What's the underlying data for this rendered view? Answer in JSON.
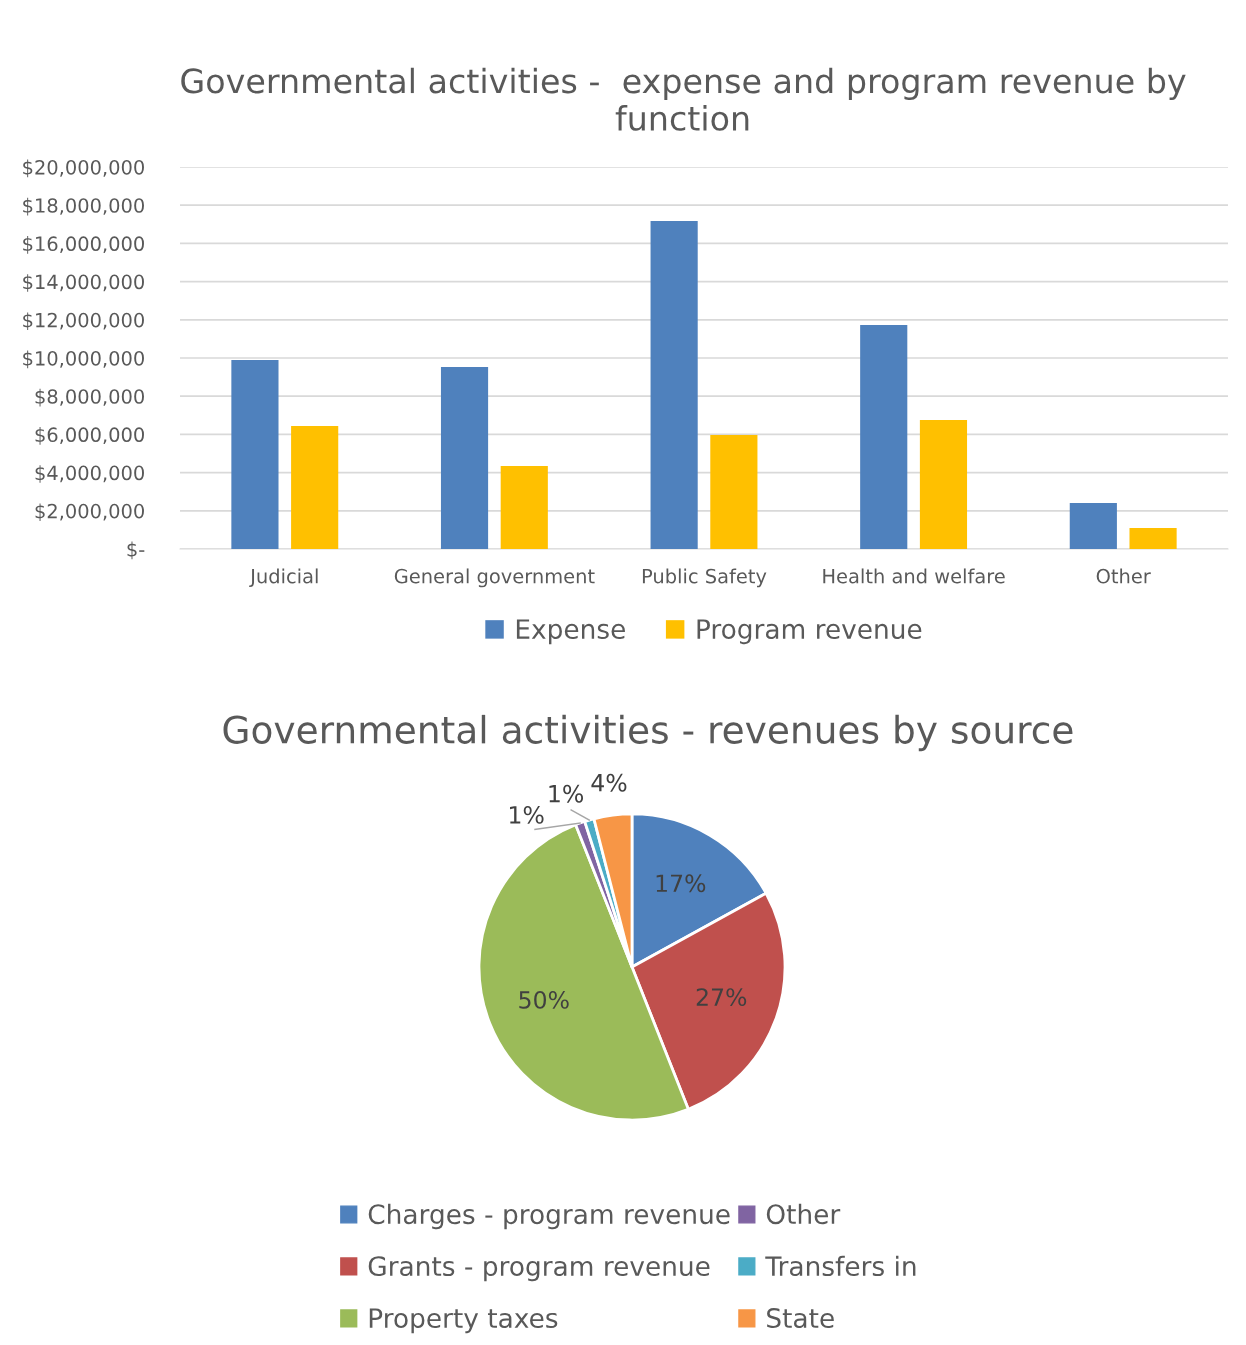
{
  "chart_data": [
    {
      "type": "bar",
      "title": "Governmental activities -  expense and program revenue by function",
      "categories": [
        "Judicial",
        "General government",
        "Public Safety",
        "Health and welfare",
        "Other"
      ],
      "series": [
        {
          "name": "Expense",
          "color": "#4f81bd",
          "values": [
            9900000,
            9530000,
            17170000,
            11730000,
            2410000
          ]
        },
        {
          "name": "Program revenue",
          "color": "#ffc000",
          "values": [
            6440000,
            4350000,
            5970000,
            6750000,
            1100000
          ]
        }
      ],
      "ylim": [
        0,
        20000000
      ],
      "yticks": [
        {
          "value": 0,
          "label": "$-"
        },
        {
          "value": 2000000,
          "label": "$2,000,000"
        },
        {
          "value": 4000000,
          "label": "$4,000,000"
        },
        {
          "value": 6000000,
          "label": "$6,000,000"
        },
        {
          "value": 8000000,
          "label": "$8,000,000"
        },
        {
          "value": 10000000,
          "label": "$10,000,000"
        },
        {
          "value": 12000000,
          "label": "$12,000,000"
        },
        {
          "value": 14000000,
          "label": "$14,000,000"
        },
        {
          "value": 16000000,
          "label": "$16,000,000"
        },
        {
          "value": 18000000,
          "label": "$18,000,000"
        },
        {
          "value": 20000000,
          "label": "$20,000,000"
        }
      ],
      "grid": "y",
      "legend": "bottom"
    },
    {
      "type": "pie",
      "title": "Governmental activities - revenues by source",
      "categories": [
        "Charges - program revenue",
        "Grants - program revenue",
        "Property taxes",
        "Other",
        "Transfers in",
        "State"
      ],
      "values": [
        17,
        27,
        50,
        1,
        1,
        4
      ],
      "colors": [
        "#4f81bd",
        "#c0504d",
        "#9bbb59",
        "#8064a2",
        "#4bacc6",
        "#f79646"
      ],
      "value_labels": [
        "17%",
        "27%",
        "50%",
        "1%",
        "1%",
        "4%"
      ],
      "legend": "bottom"
    }
  ]
}
